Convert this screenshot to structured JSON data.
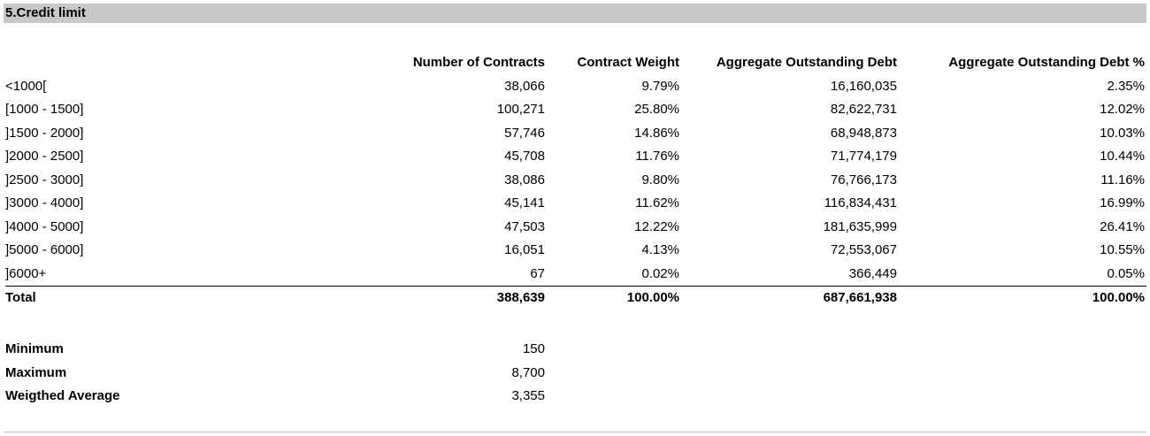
{
  "section": {
    "title": "5.Credit limit"
  },
  "table": {
    "headers": [
      "",
      "Number of Contracts",
      "Contract Weight",
      "Aggregate Outstanding Debt",
      "Aggregate Outstanding Debt %"
    ],
    "rows": [
      [
        "<1000[",
        "38,066",
        "9.79%",
        "16,160,035",
        "2.35%"
      ],
      [
        "[1000 - 1500]",
        "100,271",
        "25.80%",
        "82,622,731",
        "12.02%"
      ],
      [
        "]1500 - 2000]",
        "57,746",
        "14.86%",
        "68,948,873",
        "10.03%"
      ],
      [
        "]2000 - 2500]",
        "45,708",
        "11.76%",
        "71,774,179",
        "10.44%"
      ],
      [
        "]2500 - 3000]",
        "38,086",
        "9.80%",
        "76,766,173",
        "11.16%"
      ],
      [
        "]3000 - 4000]",
        "45,141",
        "11.62%",
        "116,834,431",
        "16.99%"
      ],
      [
        "]4000 - 5000]",
        "47,503",
        "12.22%",
        "181,635,999",
        "26.41%"
      ],
      [
        "]5000 - 6000]",
        "16,051",
        "4.13%",
        "72,553,067",
        "10.55%"
      ],
      [
        "]6000+",
        "67",
        "0.02%",
        "366,449",
        "0.05%"
      ]
    ],
    "total": [
      "Total",
      "388,639",
      "100.00%",
      "687,661,938",
      "100.00%"
    ]
  },
  "stats": [
    [
      "Minimum",
      "150"
    ],
    [
      "Maximum",
      "8,700"
    ],
    [
      "Weigthed Average",
      "3,355"
    ]
  ]
}
